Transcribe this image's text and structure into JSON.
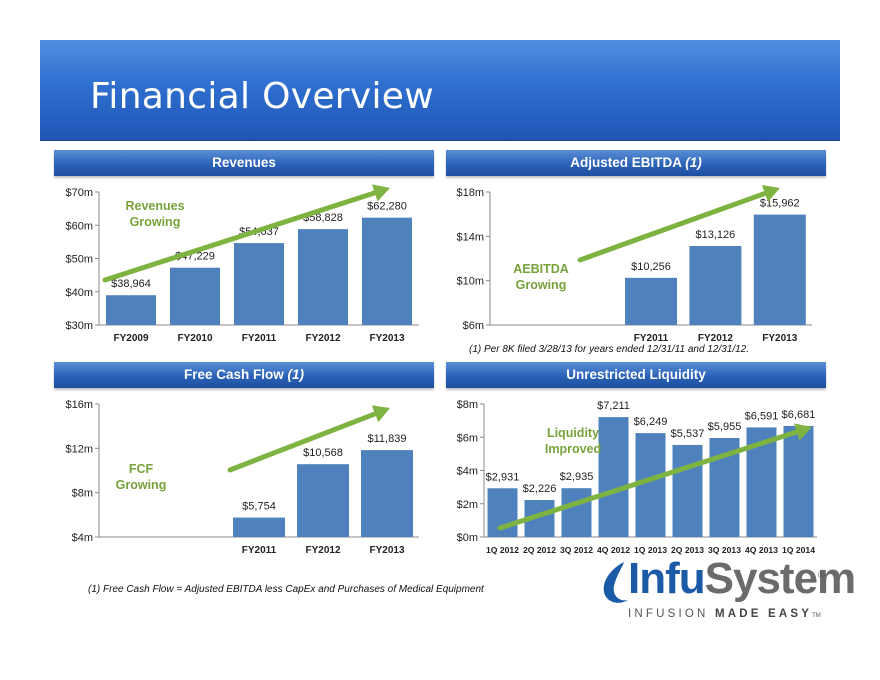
{
  "title": "Financial Overview",
  "panels": {
    "revenues": {
      "header": "Revenues",
      "annotation": [
        "Revenues",
        "Growing"
      ]
    },
    "ebitda": {
      "header": "Adjusted EBITDA",
      "header_note": "(1)",
      "annotation": [
        "AEBITDA",
        "Growing"
      ],
      "footnote": "(1) Per 8K filed 3/28/13 for years ended 12/31/11 and 12/31/12."
    },
    "fcf": {
      "header": "Free Cash Flow",
      "header_note": "(1)",
      "annotation": [
        "FCF",
        "Growing"
      ]
    },
    "liquidity": {
      "header": "Unrestricted Liquidity",
      "annotation": [
        "Liquidity",
        "Improved"
      ]
    }
  },
  "footnote": "(1) Free Cash Flow = Adjusted EBITDA less CapEx and Purchases of Medical Equipment",
  "logo": {
    "brand_part1": "Infu",
    "brand_part2": "System",
    "registered": "®",
    "tagline_light": "INFUSION",
    "tagline_bold": "MADE EASY",
    "tagline_tm": "TM"
  },
  "colors": {
    "bar": "#4f81bd",
    "arrow": "#7fb341",
    "annotation_text": "#77a23b",
    "header": "#2b62b8"
  },
  "chart_data": [
    {
      "id": "revenues",
      "type": "bar",
      "title": "Revenues",
      "categories": [
        "FY2009",
        "FY2010",
        "FY2011",
        "FY2012",
        "FY2013"
      ],
      "values": [
        38964,
        47229,
        54637,
        58828,
        62280
      ],
      "labels": [
        "$38,964",
        "$47,229",
        "$54,637",
        "$58,828",
        "$62,280"
      ],
      "ylim": [
        30000,
        70000
      ],
      "yticks": [
        30000,
        40000,
        50000,
        60000,
        70000
      ],
      "yticklabels": [
        "$30m",
        "$40m",
        "$50m",
        "$60m",
        "$70m"
      ],
      "grid": false,
      "trend_arrow": true
    },
    {
      "id": "ebitda",
      "type": "bar",
      "title": "Adjusted EBITDA (1)",
      "categories": [
        "",
        "",
        "FY2011",
        "FY2012",
        "FY2013"
      ],
      "values": [
        null,
        null,
        10256,
        13126,
        15962
      ],
      "labels": [
        "",
        "",
        "$10,256",
        "$13,126",
        "$15,962"
      ],
      "ylim": [
        6000,
        18000
      ],
      "yticks": [
        6000,
        10000,
        14000,
        18000
      ],
      "yticklabels": [
        "$6m",
        "$10m",
        "$14m",
        "$18m"
      ],
      "grid": false,
      "trend_arrow": true
    },
    {
      "id": "fcf",
      "type": "bar",
      "title": "Free Cash Flow (1)",
      "categories": [
        "",
        "",
        "FY2011",
        "FY2012",
        "FY2013"
      ],
      "values": [
        null,
        null,
        5754,
        10568,
        11839
      ],
      "labels": [
        "",
        "",
        "$5,754",
        "$10,568",
        "$11,839"
      ],
      "ylim": [
        4000,
        16000
      ],
      "yticks": [
        4000,
        8000,
        12000,
        16000
      ],
      "yticklabels": [
        "$4m",
        "$8m",
        "$12m",
        "$16m"
      ],
      "grid": false,
      "trend_arrow": true
    },
    {
      "id": "liquidity",
      "type": "bar",
      "title": "Unrestricted Liquidity",
      "categories": [
        "1Q 2012",
        "2Q 2012",
        "3Q 2012",
        "4Q 2012",
        "1Q 2013",
        "2Q 2013",
        "3Q 2013",
        "4Q 2013",
        "1Q 2014"
      ],
      "values": [
        2931,
        2226,
        2935,
        7211,
        6249,
        5537,
        5955,
        6591,
        6681
      ],
      "labels": [
        "$2,931",
        "$2,226",
        "$2,935",
        "$7,211",
        "$6,249",
        "$5,537",
        "$5,955",
        "$6,591",
        "$6,681"
      ],
      "ylim": [
        0,
        8000
      ],
      "yticks": [
        0,
        2000,
        4000,
        6000,
        8000
      ],
      "yticklabels": [
        "$0m",
        "$2m",
        "$4m",
        "$6m",
        "$8m"
      ],
      "grid": false,
      "trend_arrow": true
    }
  ]
}
